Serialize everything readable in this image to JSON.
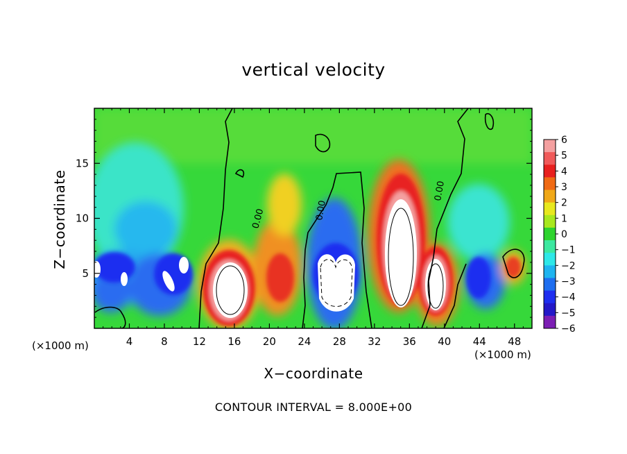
{
  "chart_data": {
    "type": "heatmap",
    "title": "vertical velocity",
    "xlabel": "X−coordinate",
    "ylabel": "Z−coordinate",
    "x_unit_left": "(×1000 m)",
    "x_unit_right": "(×1000 m)",
    "xlim": [
      0,
      50
    ],
    "ylim": [
      0,
      20
    ],
    "x_ticks": [
      4,
      8,
      12,
      16,
      20,
      24,
      28,
      32,
      36,
      40,
      44,
      48
    ],
    "y_ticks": [
      5,
      10,
      15
    ],
    "colorbar": {
      "ticks": [
        6,
        5,
        4,
        3,
        2,
        1,
        0,
        -1,
        -2,
        -3,
        -4,
        -5,
        -6
      ],
      "tick_labels": [
        "6",
        "5",
        "4",
        "3",
        "2",
        "1",
        "0",
        "−1",
        "−2",
        "−3",
        "−4",
        "−5",
        "−6"
      ],
      "colors": [
        "#f4a0a0",
        "#f05a5a",
        "#e8201e",
        "#f06a14",
        "#f0a818",
        "#e8e81e",
        "#a8e81e",
        "#2ed42e",
        "#3ce8a0",
        "#2ee8e8",
        "#1eb4f0",
        "#1e6ef0",
        "#1e2ef0",
        "#2418c8",
        "#7c1eb4"
      ]
    },
    "contour_labels": [
      "0.00",
      "0.00",
      "0.00"
    ],
    "contour_interval_text": "CONTOUR INTERVAL = 8.000E+00",
    "features": [
      {
        "kind": "updraft",
        "x": 15.5,
        "z": 3.5,
        "value": 6
      },
      {
        "kind": "updraft",
        "x": 21,
        "z": 5,
        "value": 4
      },
      {
        "kind": "updraft",
        "x": 21.5,
        "z": 11.5,
        "value": 3
      },
      {
        "kind": "updraft",
        "x": 35,
        "z": 7,
        "value": 6
      },
      {
        "kind": "updraft",
        "x": 39.5,
        "z": 4.5,
        "value": 6
      },
      {
        "kind": "updraft",
        "x": 47,
        "z": 5.5,
        "value": 3
      },
      {
        "kind": "downdraft",
        "x": 27.5,
        "z": 4.5,
        "value": -6
      },
      {
        "kind": "downdraft",
        "x": 9,
        "z": 4,
        "value": -6
      },
      {
        "kind": "downdraft",
        "x": 3,
        "z": 4,
        "value": -6
      },
      {
        "kind": "downdraft",
        "x": 44.5,
        "z": 3.5,
        "value": -5
      },
      {
        "kind": "downdraft",
        "x": 6,
        "z": 10.5,
        "value": -2
      }
    ]
  }
}
